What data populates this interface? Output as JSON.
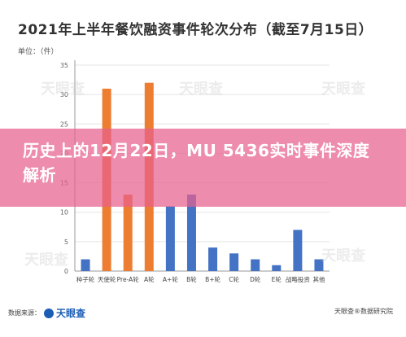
{
  "page": {
    "title": "2021年上半年餐饮融资事件轮次分布（截至7月15日）",
    "unit_label": "单位：（件）",
    "banner_text": "历史上的12月22日，MU 5436实时事件深度解析",
    "footer_left_text": "数据来源：",
    "footer_logo_text": "天眼查",
    "footer_right_text": "天眼查®数据研究院",
    "watermark_text": "天眼查"
  },
  "chart_data": {
    "type": "bar",
    "categories": [
      "种子轮",
      "天使轮",
      "Pre-A轮",
      "A轮",
      "A+轮",
      "B轮",
      "B+轮",
      "C轮",
      "D轮",
      "E轮",
      "战略投资",
      "其他"
    ],
    "series": [
      {
        "values": [
          2,
          31,
          13,
          32,
          11,
          13,
          4,
          3,
          2,
          1,
          7,
          2
        ],
        "colors": [
          "#4472c4",
          "#ed7d31",
          "#ed7d31",
          "#ed7d31",
          "#4472c4",
          "#4472c4",
          "#4472c4",
          "#4472c4",
          "#4472c4",
          "#4472c4",
          "#4472c4",
          "#4472c4"
        ]
      }
    ],
    "title": "2021年上半年餐饮融资事件轮次分布（截至7月15日）",
    "xlabel": "",
    "ylabel": "单位：（件）",
    "ylim": [
      0,
      35
    ],
    "yticks": [
      0,
      5,
      10,
      15,
      20,
      25,
      30,
      35
    ],
    "grid": true,
    "colors": {
      "blue": "#4472c4",
      "orange": "#ed7d31",
      "grid": "#e5e5e5",
      "axis": "#999999"
    }
  }
}
